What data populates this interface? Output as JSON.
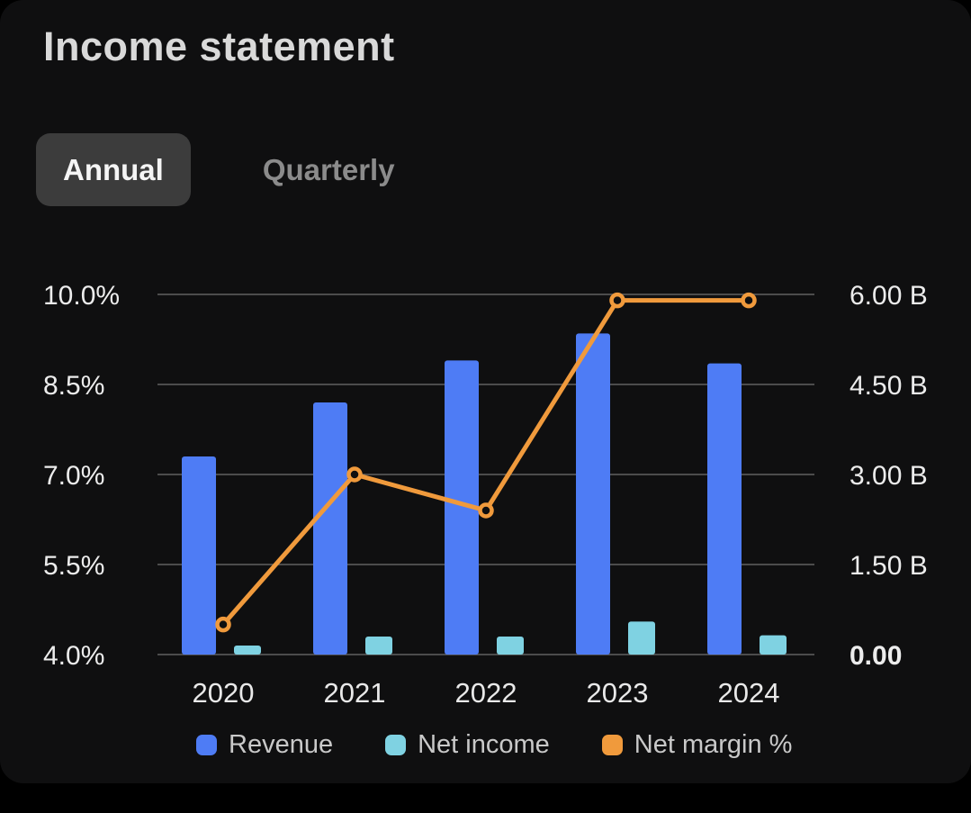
{
  "page": {
    "title": "Income statement"
  },
  "tabs": [
    {
      "label": "Annual",
      "selected": true
    },
    {
      "label": "Quarterly",
      "selected": false
    }
  ],
  "colors": {
    "background": "#0f0f10",
    "grid": "#616161",
    "axis_text": "#ececec",
    "year_text": "#e9e9e9",
    "legend_text": "#c9c9c9",
    "revenue": "#4e7cf5",
    "net_income": "#7fd2e2",
    "net_margin": "#f09a3c"
  },
  "chart_data": {
    "type": "combo",
    "categories": [
      "2020",
      "2021",
      "2022",
      "2023",
      "2024"
    ],
    "series": [
      {
        "name": "Revenue",
        "type": "bar",
        "axis": "right",
        "color": "#4e7cf5",
        "values": [
          3.3,
          4.2,
          4.9,
          5.35,
          4.85
        ]
      },
      {
        "name": "Net income",
        "type": "bar",
        "axis": "right",
        "color": "#7fd2e2",
        "values": [
          0.15,
          0.3,
          0.3,
          0.55,
          0.32
        ]
      },
      {
        "name": "Net margin %",
        "type": "line",
        "axis": "left",
        "color": "#f09a3c",
        "values": [
          4.5,
          7.0,
          6.4,
          9.9,
          9.9
        ]
      }
    ],
    "left_axis": {
      "ticks": [
        "10.0%",
        "8.5%",
        "7.0%",
        "5.5%",
        "4.0%"
      ],
      "min": 4.0,
      "max": 10.0
    },
    "right_axis": {
      "ticks": [
        "6.00 B",
        "4.50 B",
        "3.00 B",
        "1.50 B",
        "0.00"
      ],
      "min": 0,
      "max": 6.0
    },
    "grid": true,
    "legend_position": "bottom",
    "legend": [
      "Revenue",
      "Net income",
      "Net margin %"
    ]
  }
}
